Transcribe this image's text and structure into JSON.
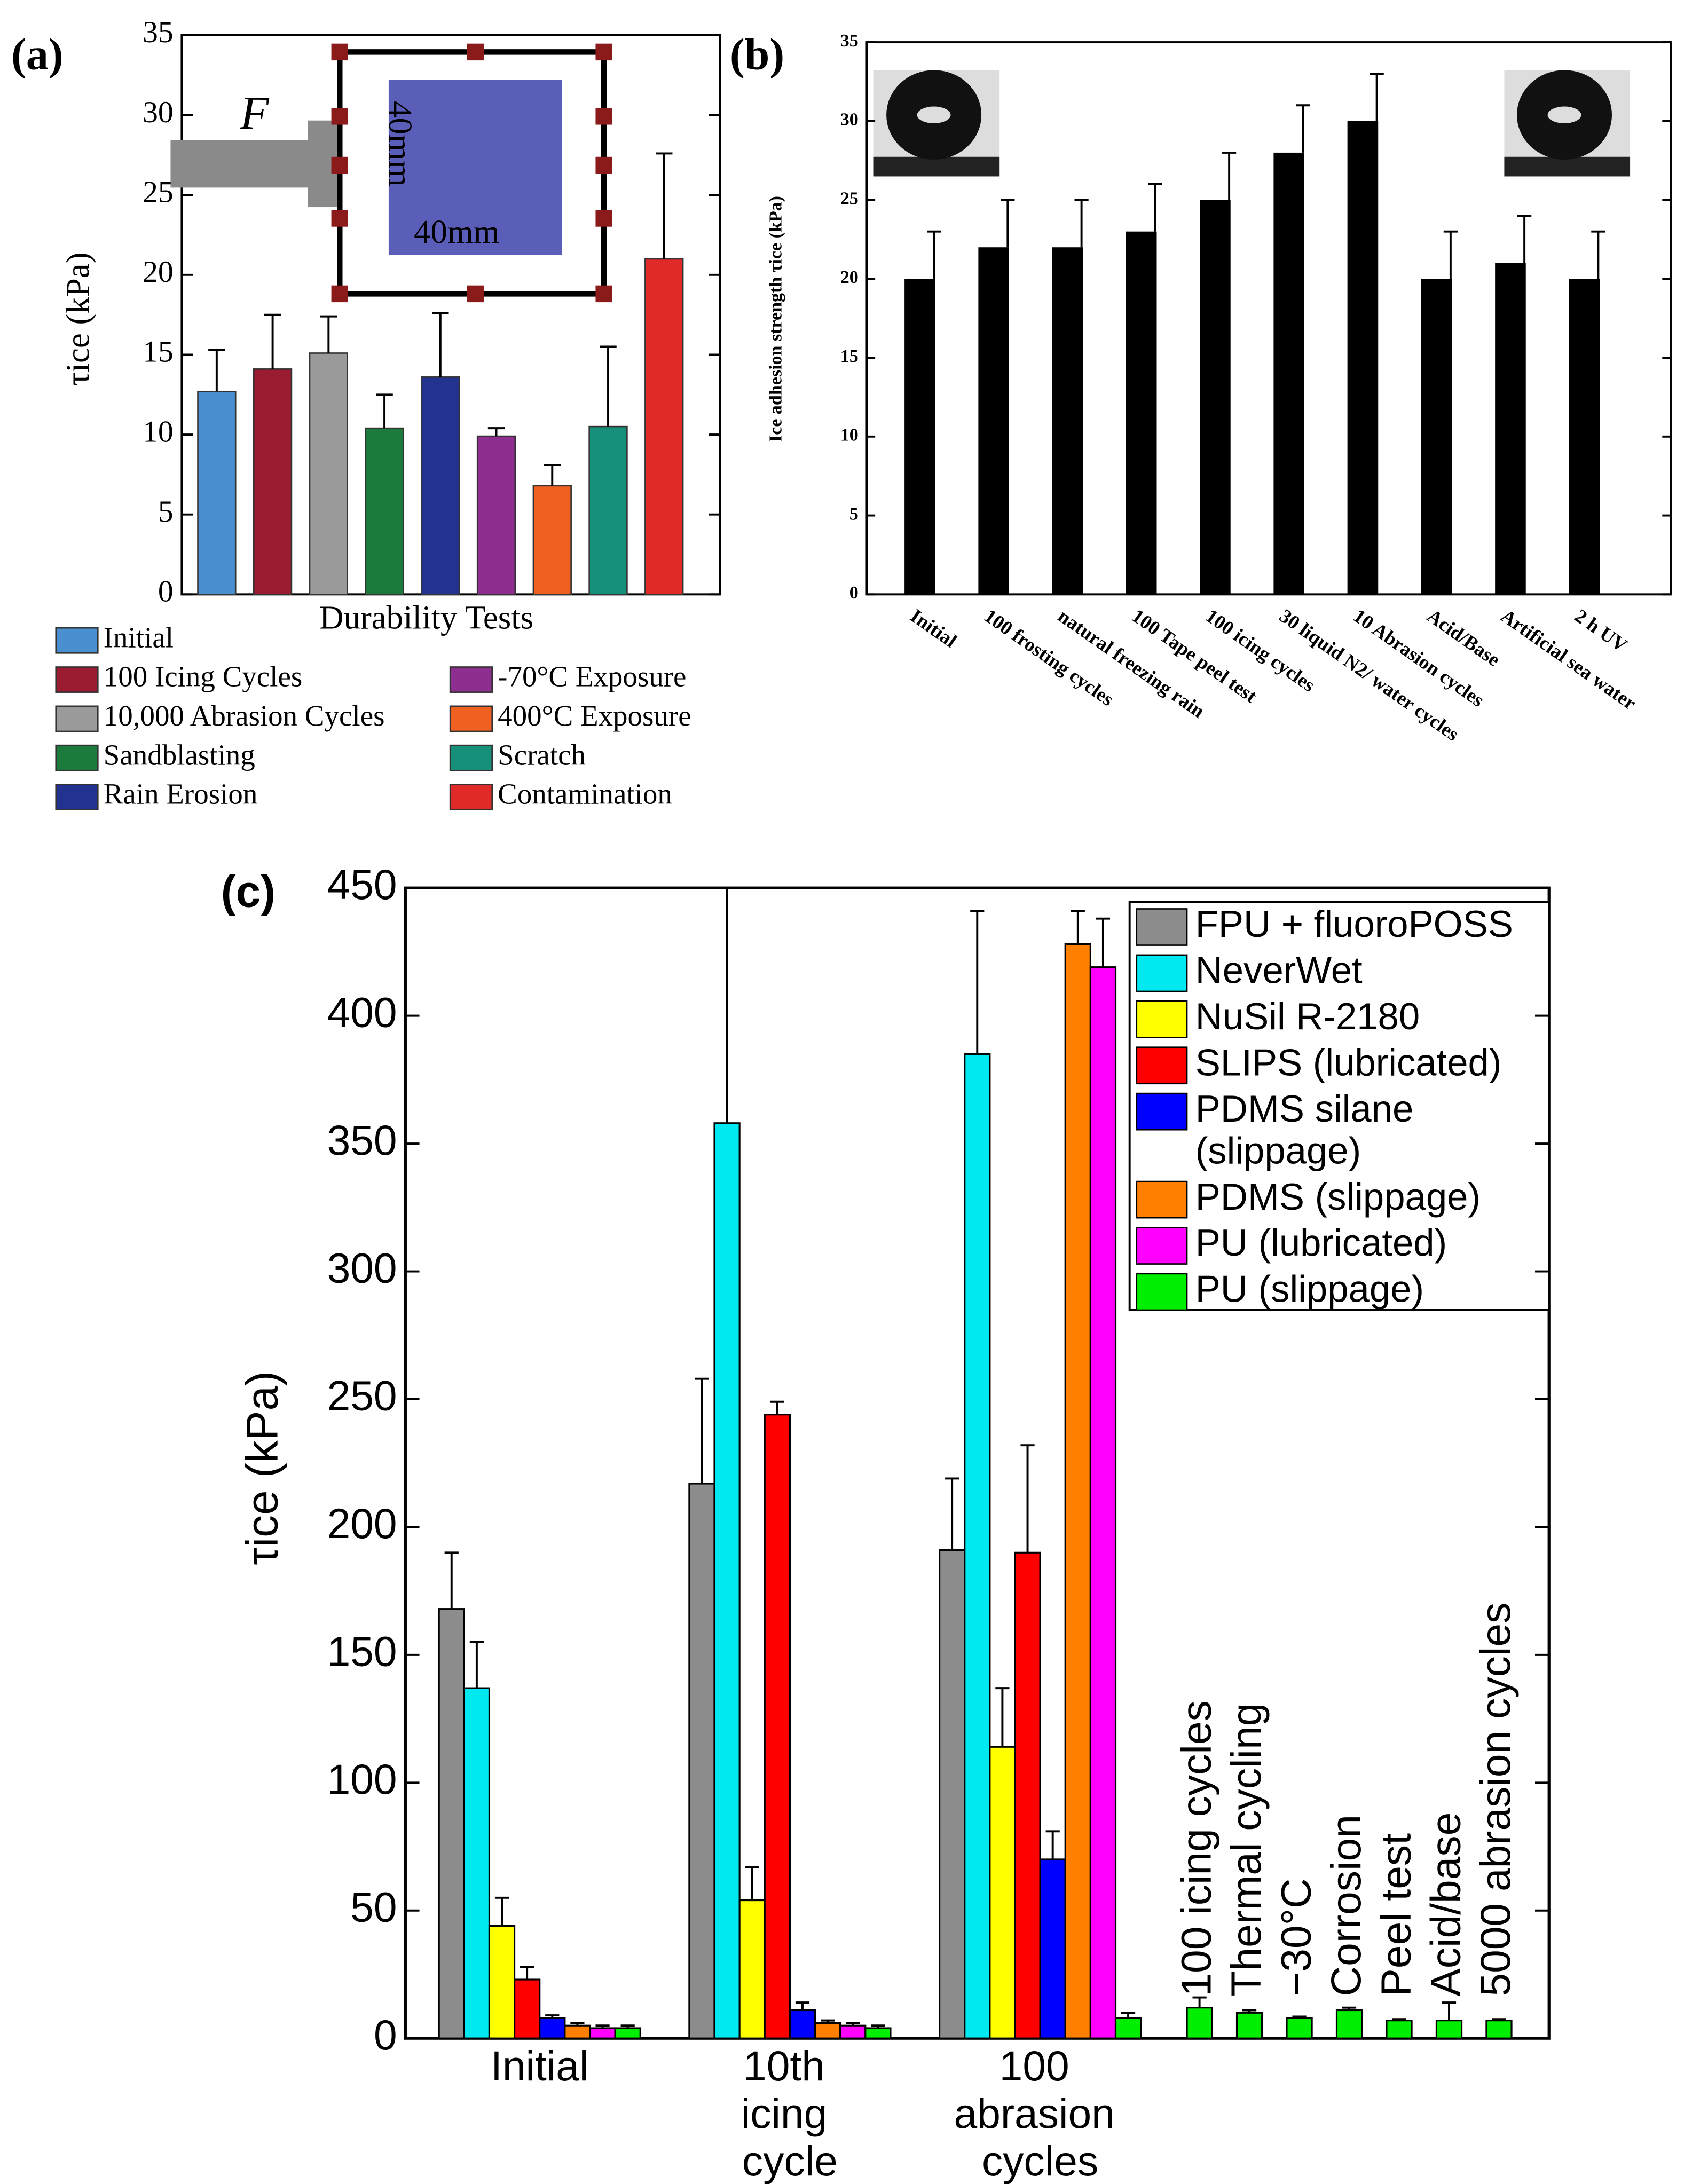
{
  "chart_data": [
    {
      "type": "bar",
      "panel_label": "(a)",
      "xlabel": "Durability Tests",
      "ylabel": "τice (kPa)",
      "inset_labels": [
        "F",
        "40mm",
        "40mm"
      ],
      "categories": [
        "Initial",
        "100 Icing Cycles",
        "10,000 Abrasion Cycles",
        "Sandblasting",
        "Rain Erosion",
        "-70°C Exposure",
        "400°C Exposure",
        "Scratch",
        "Contamination"
      ],
      "values": [
        12.7,
        14.1,
        15.1,
        10.4,
        13.6,
        9.9,
        6.8,
        10.5,
        21.0
      ],
      "errors": [
        2.6,
        3.4,
        2.3,
        2.1,
        4.0,
        0.5,
        1.3,
        5.0,
        6.6
      ],
      "colors": [
        "#4a90d0",
        "#9b1b30",
        "#9a9a9a",
        "#1c7a3c",
        "#23318f",
        "#8e2e8e",
        "#f06020",
        "#17907a",
        "#e02a2a"
      ],
      "ylim": [
        0,
        35
      ],
      "yticks": [
        0,
        5,
        10,
        15,
        20,
        25,
        30,
        35
      ]
    },
    {
      "type": "bar",
      "panel_label": "(b)",
      "ylabel": "Ice adhesion strength τice (kPa)",
      "categories": [
        "Initial",
        "100 frosting cycles",
        "natural freezing rain",
        "100 Tape peel test",
        "100 icing cycles",
        "30 liquid N2/ water cycles",
        "10 Abrasion cycles",
        "Acid/Base",
        "Artificial sea water",
        "2 h UV"
      ],
      "values": [
        20,
        22,
        22,
        23,
        25,
        28,
        30,
        20,
        21,
        20
      ],
      "errors": [
        3,
        3,
        3,
        3,
        3,
        3,
        3,
        3,
        3,
        3
      ],
      "color": "#000000",
      "ylim": [
        0,
        35
      ],
      "yticks": [
        0,
        5,
        10,
        15,
        20,
        25,
        30,
        35
      ]
    },
    {
      "type": "grouped_bar",
      "panel_label": "(c)",
      "ylabel": "τice (kPa)",
      "categories": [
        "Initial",
        "10th icing cycle",
        "100 abrasion cycles",
        "100 icing cycles",
        "Thermal cycling",
        "−30°C",
        "Corrosion",
        "Peel test",
        "Acid/base",
        "5000 abrasion cycles"
      ],
      "series": [
        {
          "name": "FPU + fluoroPOSS",
          "color": "#8c8c8c",
          "values": [
            168,
            217,
            191,
            null,
            null,
            null,
            null,
            null,
            null,
            null
          ],
          "errors": [
            22,
            41,
            28,
            null,
            null,
            null,
            null,
            null,
            null,
            null
          ]
        },
        {
          "name": "NeverWet",
          "color": "#00e8f0",
          "values": [
            137,
            358,
            385,
            null,
            null,
            null,
            null,
            null,
            null,
            null
          ],
          "errors": [
            18,
            92,
            56,
            null,
            null,
            null,
            null,
            null,
            null,
            null
          ]
        },
        {
          "name": "NuSil R-2180",
          "color": "#ffff00",
          "values": [
            44,
            54,
            114,
            null,
            null,
            null,
            null,
            null,
            null,
            null
          ],
          "errors": [
            11,
            13,
            23,
            null,
            null,
            null,
            null,
            null,
            null,
            null
          ]
        },
        {
          "name": "SLIPS (lubricated)",
          "color": "#ff0000",
          "values": [
            23,
            244,
            190,
            null,
            null,
            null,
            null,
            null,
            null,
            null
          ],
          "errors": [
            5,
            5,
            42,
            null,
            null,
            null,
            null,
            null,
            null,
            null
          ]
        },
        {
          "name": "PDMS silane (slippage)",
          "color": "#0000ff",
          "values": [
            8,
            11,
            70,
            null,
            null,
            null,
            null,
            null,
            null,
            null
          ],
          "errors": [
            1,
            3,
            11,
            null,
            null,
            null,
            null,
            null,
            null,
            null
          ]
        },
        {
          "name": "PDMS (slippage)",
          "color": "#ff8000",
          "values": [
            5,
            6,
            428,
            null,
            null,
            null,
            null,
            null,
            null,
            null
          ],
          "errors": [
            1,
            1,
            13,
            null,
            null,
            null,
            null,
            null,
            null,
            null
          ]
        },
        {
          "name": "PU (lubricated)",
          "color": "#ff00ff",
          "values": [
            4,
            5,
            419,
            null,
            null,
            null,
            null,
            null,
            null,
            null
          ],
          "errors": [
            1,
            1,
            19,
            null,
            null,
            null,
            null,
            null,
            null,
            null
          ]
        },
        {
          "name": "PU (slippage)",
          "color": "#00ee00",
          "values": [
            4,
            4,
            8,
            12,
            10,
            8,
            11,
            7,
            7,
            7
          ],
          "errors": [
            1,
            1,
            2,
            4,
            1,
            0.5,
            1,
            0.5,
            7,
            0.5
          ]
        }
      ],
      "ylim": [
        0,
        450
      ],
      "yticks": [
        0,
        50,
        100,
        150,
        200,
        250,
        300,
        350,
        400,
        450
      ]
    }
  ]
}
